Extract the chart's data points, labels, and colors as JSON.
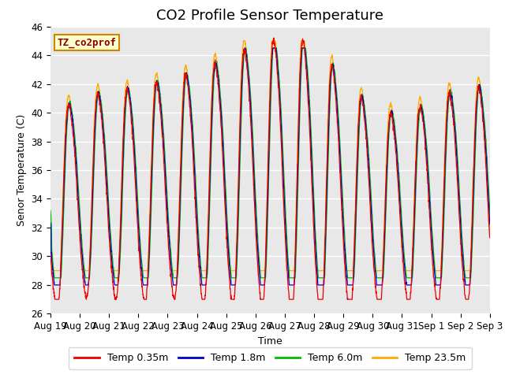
{
  "title": "CO2 Profile Sensor Temperature",
  "ylabel": "Senor Temperature (C)",
  "xlabel": "Time",
  "annotation": "TZ_co2prof",
  "ylim": [
    26,
    46
  ],
  "n_days": 15,
  "background_color": "#e8e8e8",
  "grid_color": "white",
  "colors": {
    "temp_035": "#ee0000",
    "temp_18": "#0000cc",
    "temp_60": "#00bb00",
    "temp_235": "#ffaa00"
  },
  "legend_labels": [
    "Temp 0.35m",
    "Temp 1.8m",
    "Temp 6.0m",
    "Temp 23.5m"
  ],
  "x_tick_labels": [
    "Aug 19",
    "Aug 20",
    "Aug 21",
    "Aug 22",
    "Aug 23",
    "Aug 24",
    "Aug 25",
    "Aug 26",
    "Aug 27",
    "Aug 28",
    "Aug 29",
    "Aug 30",
    "Aug 31",
    "Sep 1",
    "Sep 2",
    "Sep 3"
  ],
  "title_fontsize": 13,
  "label_fontsize": 9,
  "tick_fontsize": 8.5
}
